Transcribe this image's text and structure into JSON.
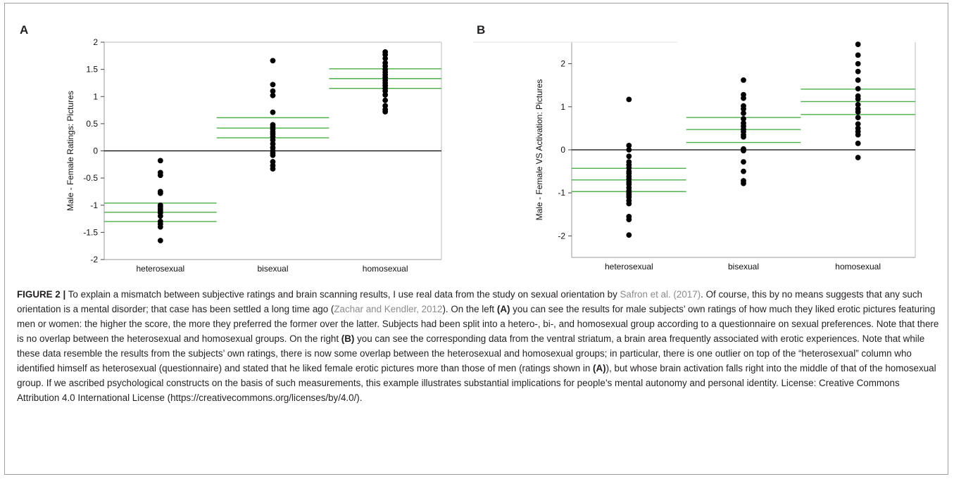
{
  "panels": {
    "a": {
      "letter": "A"
    },
    "b": {
      "letter": "B"
    }
  },
  "chart_data": [
    {
      "type": "scatter",
      "panel": "A",
      "ylabel": "Male - Female Ratings: Pictures",
      "xlabel": "",
      "categories": [
        "heterosexual",
        "bisexual",
        "homosexual"
      ],
      "ylim": [
        -2,
        2
      ],
      "yticks": [
        2,
        1.5,
        1,
        0.5,
        0,
        -0.5,
        -1,
        -1.5,
        -2
      ],
      "ytick_labels": [
        "2",
        "1.5",
        "1",
        "0.5",
        "0",
        "-0.5",
        "-1",
        "-1.5",
        "-2"
      ],
      "reference_line": 0,
      "colors": {
        "points": "#000000",
        "mean_lines": "#4daf4a",
        "axis": "#000000"
      },
      "series": [
        {
          "category": "heterosexual",
          "values": [
            -0.18,
            -0.4,
            -0.45,
            -0.75,
            -0.78,
            -1.0,
            -1.03,
            -1.07,
            -1.1,
            -1.14,
            -1.2,
            -1.3,
            -1.35,
            -1.4,
            -1.65
          ],
          "mean": -1.13,
          "ci": [
            -1.3,
            -0.96
          ]
        },
        {
          "category": "bisexual",
          "values": [
            1.66,
            1.22,
            1.1,
            1.02,
            0.71,
            0.48,
            0.44,
            0.4,
            0.35,
            0.31,
            0.26,
            0.2,
            0.13,
            0.06,
            0.0,
            -0.04,
            -0.08,
            -0.2,
            -0.27,
            -0.33
          ],
          "mean": 0.42,
          "ci": [
            0.24,
            0.61
          ]
        },
        {
          "category": "homosexual",
          "values": [
            1.82,
            1.77,
            1.7,
            1.62,
            1.56,
            1.5,
            1.45,
            1.4,
            1.35,
            1.3,
            1.25,
            1.2,
            1.15,
            1.1,
            1.03,
            0.93,
            0.83,
            0.76,
            0.72
          ],
          "mean": 1.33,
          "ci": [
            1.15,
            1.51
          ]
        }
      ]
    },
    {
      "type": "scatter",
      "panel": "B",
      "ylabel": "Male - Female VS Activation: Pictures",
      "xlabel": "",
      "categories": [
        "heterosexual",
        "bisexual",
        "homosexual"
      ],
      "ylim": [
        -2.5,
        2.5
      ],
      "yticks": [
        2,
        1,
        0,
        -1,
        -2
      ],
      "ytick_labels": [
        "2",
        "1",
        "0",
        "-1",
        "-2"
      ],
      "reference_line": 0,
      "colors": {
        "points": "#000000",
        "mean_lines": "#4daf4a",
        "axis": "#000000"
      },
      "series": [
        {
          "category": "heterosexual",
          "values": [
            1.17,
            0.1,
            0.0,
            -0.15,
            -0.28,
            -0.35,
            -0.42,
            -0.5,
            -0.55,
            -0.62,
            -0.68,
            -0.75,
            -0.8,
            -0.88,
            -0.95,
            -1.0,
            -1.05,
            -1.1,
            -1.18,
            -1.25,
            -1.55,
            -1.62,
            -1.98
          ],
          "mean": -0.7,
          "ci": [
            -0.97,
            -0.43
          ]
        },
        {
          "category": "bisexual",
          "values": [
            1.62,
            1.28,
            1.2,
            1.02,
            0.95,
            0.85,
            0.72,
            0.62,
            0.55,
            0.48,
            0.42,
            0.35,
            0.3,
            0.02,
            -0.02,
            -0.28,
            -0.5,
            -0.72,
            -0.78
          ],
          "mean": 0.47,
          "ci": [
            0.17,
            0.75
          ]
        },
        {
          "category": "homosexual",
          "values": [
            2.45,
            2.2,
            2.0,
            1.82,
            1.62,
            1.42,
            1.25,
            1.18,
            1.05,
            0.95,
            0.88,
            0.75,
            0.6,
            0.5,
            0.42,
            0.35,
            0.15,
            -0.18
          ],
          "mean": 1.12,
          "ci": [
            0.82,
            1.41
          ]
        }
      ]
    }
  ],
  "caption": {
    "label": "FIGURE 2 |",
    "t1": " To explain a mismatch between subjective ratings and brain scanning results, I use real data from the study on sexual orientation by ",
    "cite1": "Safron et al. (2017)",
    "t2": ". Of course, this by no means suggests that any such orientation is a mental disorder; that case has been settled a long time ago (",
    "cite2": "Zachar and Kendler, 2012",
    "t3": "). On the left ",
    "ref_a1": "(A)",
    "t4": " you can see the results for male subjects’ own ratings of how much they liked erotic pictures featuring men or women: the higher the score, the more they preferred the former over the latter. Subjects had been split into a hetero-, bi-, and homosexual group according to a questionnaire on sexual preferences. Note that there is no overlap between the heterosexual and homosexual groups. On the right ",
    "ref_b1": "(B)",
    "t5": " you can see the corresponding data from the ventral striatum, a brain area frequently associated with erotic experiences. Note that while these data resemble the results from the subjects’ own ratings, there is now some overlap between the heterosexual and homosexual groups; in particular, there is one outlier on top of the “heterosexual” column who identified himself as heterosexual (questionnaire) and stated that he liked female erotic pictures more than those of men (ratings shown in ",
    "ref_a2": "(A)",
    "t6": "), but whose brain activation falls right into the middle of that of the homosexual group. If we ascribed psychological constructs on the basis of such measurements, this example illustrates substantial implications for people’s mental autonomy and personal identity. License: Creative Commons Attribution 4.0 International License (https://creativecommons.org/licenses/by/4.0/)."
  }
}
